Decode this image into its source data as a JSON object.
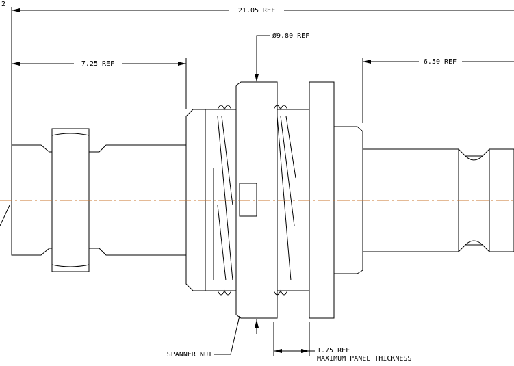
{
  "sheet_marker": "2",
  "dimensions": [
    {
      "label": "21.05 REF"
    },
    {
      "label": "7.25 REF"
    },
    {
      "label": "Ø9.80 REF"
    },
    {
      "label": "6.50 REF"
    },
    {
      "label": "1.75 REF",
      "note": "MAXIMUM PANEL THICKNESS"
    }
  ],
  "callouts": [
    {
      "label": "SPANNER NUT"
    }
  ]
}
